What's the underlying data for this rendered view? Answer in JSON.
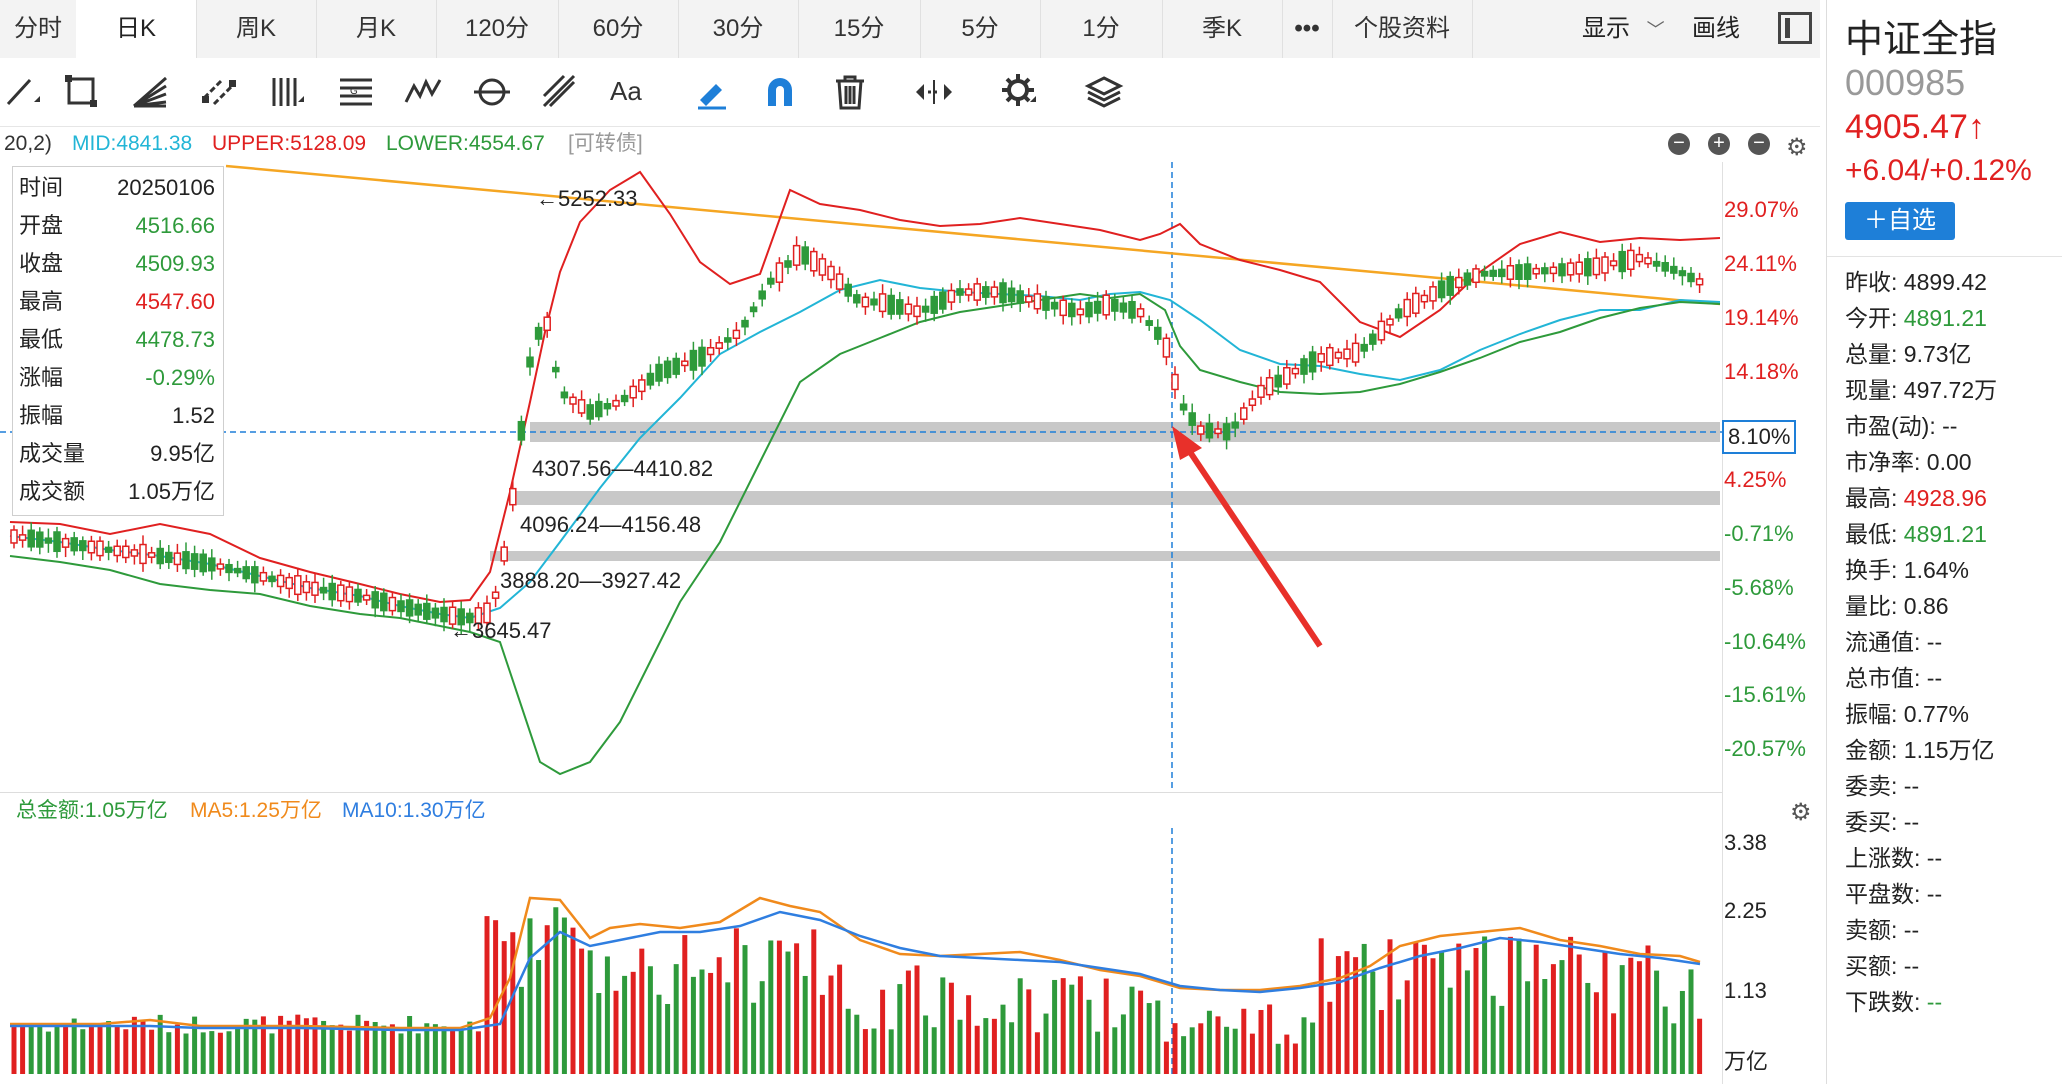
{
  "tabs": [
    "分时",
    "日K",
    "周K",
    "月K",
    "120分",
    "60分",
    "30分",
    "15分",
    "5分",
    "1分",
    "季K",
    "•••",
    "个股资料"
  ],
  "tab_right": {
    "display_label": "显示",
    "draw_label": "画线"
  },
  "toolbar_icons": [
    "line-tool-icon",
    "rectangle-tool-icon",
    "fan-tool-icon",
    "channel-tool-icon",
    "bars-tool-icon",
    "gann-tool-icon",
    "wave-tool-icon",
    "cycle-tool-icon",
    "fib-tool-icon",
    "text-tool-icon",
    "pen-tool-icon",
    "magnet-icon",
    "trash-icon",
    "eye-icon",
    "gear-icon",
    "layers-icon"
  ],
  "legend": {
    "prefix": "20,2)",
    "mid": "MID:4841.38",
    "upper": "UPPER:5128.09",
    "lower": "LOWER:4554.67",
    "note": "[可转债]"
  },
  "info": [
    {
      "k": "时间",
      "v": "20250106",
      "c": "#222"
    },
    {
      "k": "开盘",
      "v": "4516.66",
      "c": "#2e9a3b"
    },
    {
      "k": "收盘",
      "v": "4509.93",
      "c": "#2e9a3b"
    },
    {
      "k": "最高",
      "v": "4547.60",
      "c": "#e02020"
    },
    {
      "k": "最低",
      "v": "4478.73",
      "c": "#2e9a3b"
    },
    {
      "k": "涨幅",
      "v": "-0.29%",
      "c": "#2e9a3b"
    },
    {
      "k": "振幅",
      "v": "1.52",
      "c": "#222"
    },
    {
      "k": "成交量",
      "v": "9.95亿",
      "c": "#222"
    },
    {
      "k": "成交额",
      "v": "1.05万亿",
      "c": "#222"
    }
  ],
  "price_annotations": {
    "high": "←5252.33",
    "low": "←3645.47",
    "gap1": "4307.56—4410.82",
    "gap2": "4096.24—4156.48",
    "gap3": "3888.20—3927.42"
  },
  "right_axis": [
    {
      "v": "29.07%",
      "c": "#e02020"
    },
    {
      "v": "24.11%",
      "c": "#e02020"
    },
    {
      "v": "19.14%",
      "c": "#e02020"
    },
    {
      "v": "14.18%",
      "c": "#e02020"
    },
    {
      "v": "8.10%",
      "c": "#222"
    },
    {
      "v": "4.25%",
      "c": "#e02020"
    },
    {
      "v": "-0.71%",
      "c": "#2e9a3b"
    },
    {
      "v": "-5.68%",
      "c": "#2e9a3b"
    },
    {
      "v": "-10.64%",
      "c": "#2e9a3b"
    },
    {
      "v": "-15.61%",
      "c": "#2e9a3b"
    },
    {
      "v": "-20.57%",
      "c": "#2e9a3b"
    }
  ],
  "volume_legend": {
    "total": "总金额:1.05万亿",
    "ma5": "MA5:1.25万亿",
    "ma10": "MA10:1.30万亿"
  },
  "volume_axis": [
    "3.38",
    "2.25",
    "1.13",
    "万亿"
  ],
  "stock": {
    "name": "中证全指",
    "code": "000985",
    "price": "4905.47↑",
    "change": "+6.04/+0.12%",
    "add_button": "＋自选"
  },
  "stats": [
    {
      "k": "昨收:",
      "v": "4899.42",
      "c": "#222"
    },
    {
      "k": "今开:",
      "v": "4891.21",
      "c": "#2e9a3b"
    },
    {
      "k": "总量:",
      "v": "9.73亿",
      "c": "#222"
    },
    {
      "k": "现量:",
      "v": "497.72万",
      "c": "#222"
    },
    {
      "k": "市盈(动):",
      "v": "--",
      "c": "#222"
    },
    {
      "k": "市净率:",
      "v": "0.00",
      "c": "#222"
    },
    {
      "k": "最高:",
      "v": "4928.96",
      "c": "#e02020"
    },
    {
      "k": "最低:",
      "v": "4891.21",
      "c": "#2e9a3b"
    },
    {
      "k": "换手:",
      "v": "1.64%",
      "c": "#222"
    },
    {
      "k": "量比:",
      "v": "0.86",
      "c": "#222"
    },
    {
      "k": "流通值:",
      "v": "--",
      "c": "#222"
    },
    {
      "k": "总市值:",
      "v": "--",
      "c": "#222"
    },
    {
      "k": "振幅:",
      "v": "0.77%",
      "c": "#222"
    },
    {
      "k": "金额:",
      "v": "1.15万亿",
      "c": "#222"
    },
    {
      "k": "委卖:",
      "v": "--",
      "c": "#222"
    },
    {
      "k": "委买:",
      "v": "--",
      "c": "#222"
    },
    {
      "k": "上涨数:",
      "v": "--",
      "c": "#222"
    },
    {
      "k": "平盘数:",
      "v": "--",
      "c": "#222"
    },
    {
      "k": "卖额:",
      "v": "--",
      "c": "#222"
    },
    {
      "k": "买额:",
      "v": "--",
      "c": "#222"
    },
    {
      "k": "下跌数:",
      "v": "--",
      "c": "#2e9a3b"
    }
  ],
  "colors": {
    "up": "#e02020",
    "down": "#2e9a3b",
    "mid_line": "#22b5d6",
    "upper_line": "#e02020",
    "lower_line": "#2e9a3b",
    "trend_line": "#f5a623",
    "ma5": "#f08a1c",
    "ma10": "#2f7ee0",
    "accent_blue": "#1e7fd8",
    "gap_band": "#c8c8c8",
    "arrow": "#e8302a"
  }
}
